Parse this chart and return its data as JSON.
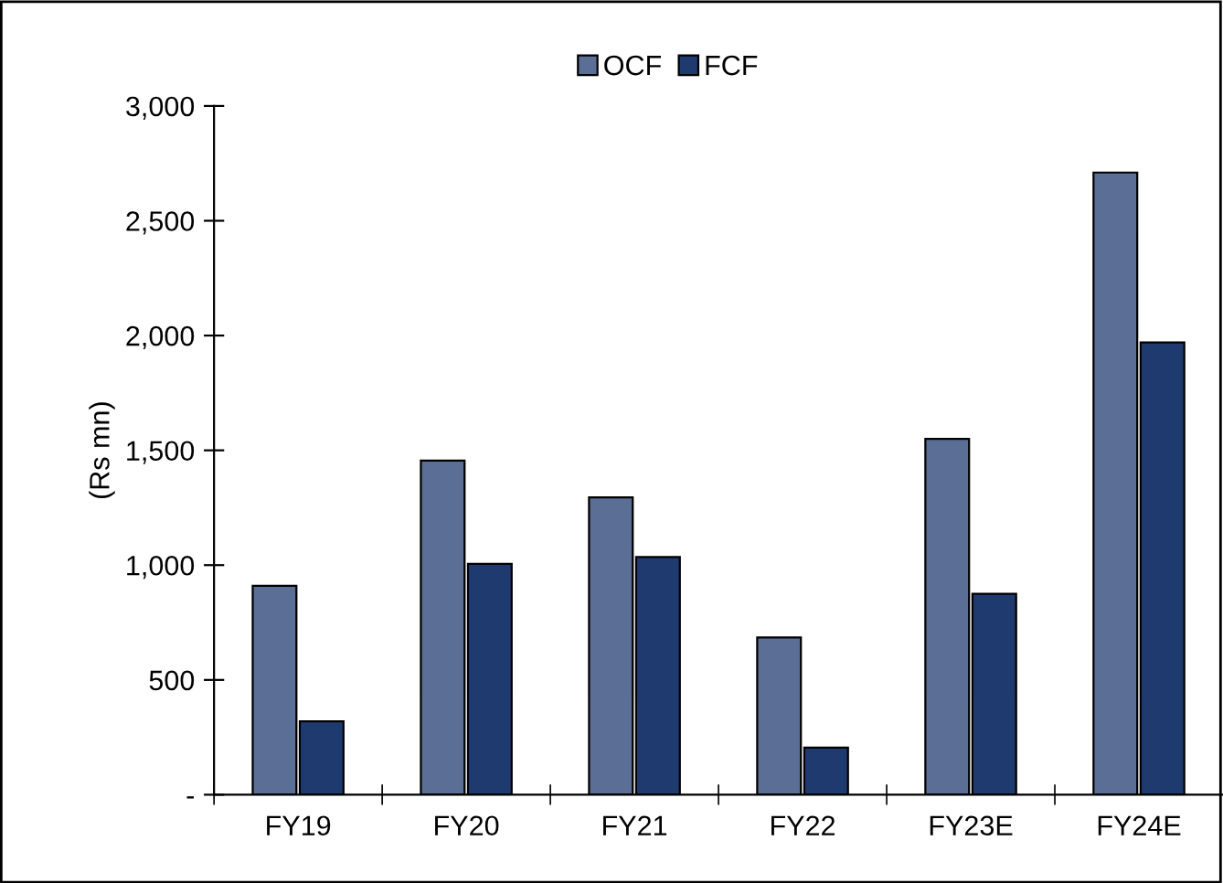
{
  "chart_data": {
    "type": "bar",
    "ylabel": "(Rs mn)",
    "categories": [
      "FY19",
      "FY20",
      "FY21",
      "FY22",
      "FY23E",
      "FY24E"
    ],
    "series": [
      {
        "name": "OCF",
        "color": "#5a6e96",
        "values": [
          910,
          1455,
          1295,
          685,
          1550,
          2710
        ]
      },
      {
        "name": "FCF",
        "color": "#1f3a6e",
        "values": [
          320,
          1005,
          1035,
          205,
          875,
          1970
        ]
      }
    ],
    "ylim": [
      0,
      3000
    ],
    "yticks": [
      {
        "value": 0,
        "label": "-"
      },
      {
        "value": 500,
        "label": "500"
      },
      {
        "value": 1000,
        "label": "1,000"
      },
      {
        "value": 1500,
        "label": "1,500"
      },
      {
        "value": 2000,
        "label": "2,000"
      },
      {
        "value": 2500,
        "label": "2,500"
      },
      {
        "value": 3000,
        "label": "3,000"
      }
    ],
    "grid": false,
    "legend": "top"
  }
}
